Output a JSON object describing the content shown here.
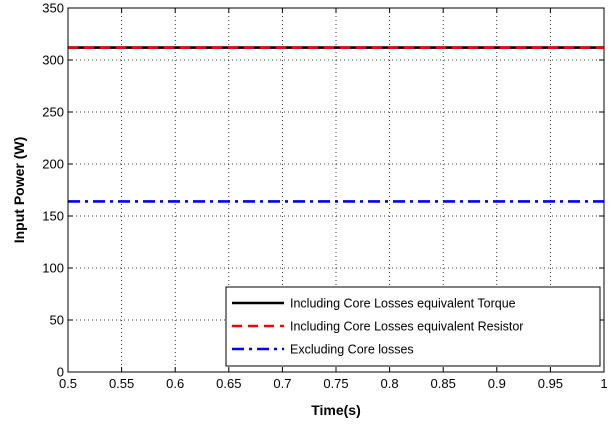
{
  "chart_data": {
    "type": "line",
    "xlabel": "Time(s)",
    "ylabel": "Input Power (W)",
    "xlim": [
      0.5,
      1
    ],
    "ylim": [
      0,
      350
    ],
    "xticks": [
      "0.5",
      "0.55",
      "0.6",
      "0.65",
      "0.7",
      "0.75",
      "0.8",
      "0.85",
      "0.9",
      "0.95",
      "1"
    ],
    "yticks": [
      "0",
      "50",
      "100",
      "150",
      "200",
      "250",
      "300",
      "350"
    ],
    "grid": true,
    "legend_position": "bottom-right",
    "series": [
      {
        "name": "Including Core Losses equivalent Torque",
        "color": "#000000",
        "style": "solid",
        "x": [
          0.5,
          1
        ],
        "y": [
          312,
          312
        ]
      },
      {
        "name": "Including Core Losses equivalent Resistor",
        "color": "#ff0000",
        "style": "dashed",
        "x": [
          0.5,
          1
        ],
        "y": [
          312,
          312
        ]
      },
      {
        "name": "Excluding Core losses",
        "color": "#0000ff",
        "style": "dash-dot",
        "x": [
          0.5,
          1
        ],
        "y": [
          164,
          164
        ]
      }
    ]
  }
}
